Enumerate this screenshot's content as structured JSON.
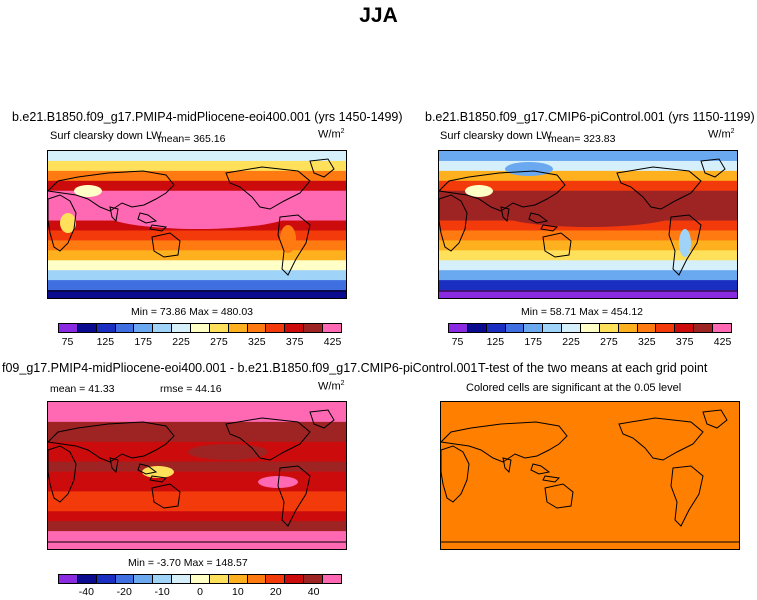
{
  "figure_title": "JJA",
  "chart_data": [
    {
      "type": "heatmap",
      "title": "b.e21.B1850.f09_g17.PMIP4-midPliocene-eoi400.001 (yrs 1450-1499)",
      "variable": "Surf clearsky down LW",
      "units_base": "W/m",
      "units_exp": "2",
      "mean_label": "mean= 365.16",
      "min_max_label": "Min =  73.86 Max = 480.03",
      "colorbar_ticks": [
        "75",
        "125",
        "175",
        "225",
        "275",
        "325",
        "375",
        "425"
      ]
    },
    {
      "type": "heatmap",
      "title": "b.e21.B1850.f09_g17.CMIP6-piControl.001 (yrs 1150-1199)",
      "variable": "Surf clearsky down LW",
      "units_base": "W/m",
      "units_exp": "2",
      "mean_label": "mean= 323.83",
      "min_max_label": "Min =  58.71 Max = 454.12",
      "colorbar_ticks": [
        "75",
        "125",
        "175",
        "225",
        "275",
        "325",
        "375",
        "425"
      ]
    },
    {
      "type": "heatmap",
      "title": "f09_g17.PMIP4-midPliocene-eoi400.001 - b.e21.B1850.f09_g17.CMIP6-piControl.001",
      "mean_label": "mean =  41.33",
      "rmse_label": "rmse =  44.16",
      "units_base": "W/m",
      "units_exp": "2",
      "min_max_label": "Min =  -3.70 Max = 148.57",
      "colorbar_ticks": [
        "-40",
        "-20",
        "-10",
        "0",
        "10",
        "20",
        "40"
      ]
    },
    {
      "type": "heatmap",
      "title": "T-test of the two means at each grid point",
      "subtitle": "Colored cells are significant at the 0.05 level"
    }
  ],
  "palettes": {
    "abs": [
      "#8a2be2",
      "#0b0b8f",
      "#1a2fc2",
      "#3f6fe0",
      "#6aa8f0",
      "#9fd4f8",
      "#d6f0fb",
      "#ffffc6",
      "#ffe05a",
      "#ffb01e",
      "#ff7a10",
      "#f23a0a",
      "#cc0c0c",
      "#9e2424",
      "#ff69b4"
    ],
    "diff": [
      "#8a2be2",
      "#0b0b8f",
      "#1a2fc2",
      "#3f6fe0",
      "#6aa8f0",
      "#9fd4f8",
      "#d6f0fb",
      "#ffffc6",
      "#ffe05a",
      "#ffb01e",
      "#ff7a10",
      "#f23a0a",
      "#cc0c0c",
      "#9e2424",
      "#ff69b4"
    ],
    "ttest_fill": "#ff7f00"
  }
}
